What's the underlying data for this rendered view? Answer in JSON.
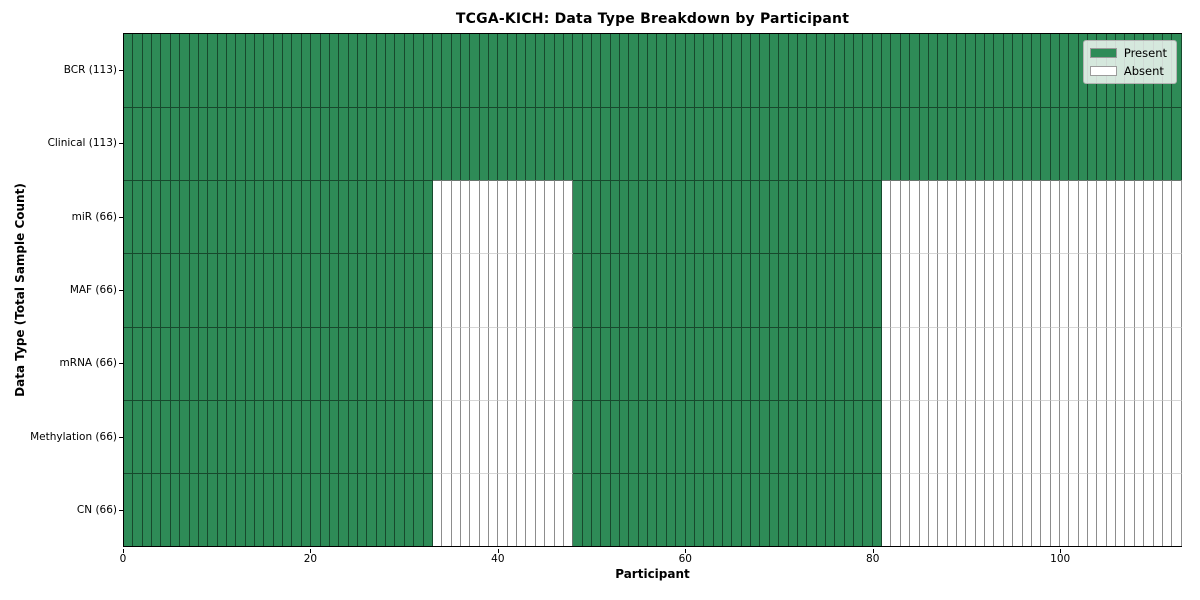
{
  "chart_data": {
    "type": "heatmap",
    "title": "TCGA-KICH: Data Type Breakdown by Participant",
    "xlabel": "Participant",
    "ylabel": "Data Type (Total Sample Count)",
    "n_participants": 113,
    "xlim": [
      0,
      113
    ],
    "x_ticks": [
      0,
      20,
      40,
      60,
      80,
      100
    ],
    "grid": "cell-borders",
    "colors": {
      "present": "#2e8b57",
      "absent": "#ffffff"
    },
    "legend": {
      "position": "upper right",
      "entries": [
        {
          "label": "Present",
          "color": "#2e8b57"
        },
        {
          "label": "Absent",
          "color": "#ffffff"
        }
      ]
    },
    "rows": [
      {
        "key": "bcr",
        "label": "BCR (113)",
        "total_samples": 113,
        "present_ranges": [
          [
            0,
            112
          ]
        ]
      },
      {
        "key": "clinical",
        "label": "Clinical (113)",
        "total_samples": 113,
        "present_ranges": [
          [
            0,
            112
          ]
        ]
      },
      {
        "key": "mir",
        "label": "miR (66)",
        "total_samples": 66,
        "present_ranges": [
          [
            0,
            32
          ],
          [
            48,
            80
          ]
        ]
      },
      {
        "key": "maf",
        "label": "MAF (66)",
        "total_samples": 66,
        "present_ranges": [
          [
            0,
            32
          ],
          [
            48,
            80
          ]
        ]
      },
      {
        "key": "mrna",
        "label": "mRNA (66)",
        "total_samples": 66,
        "present_ranges": [
          [
            0,
            32
          ],
          [
            48,
            80
          ]
        ]
      },
      {
        "key": "methylation",
        "label": "Methylation (66)",
        "total_samples": 66,
        "present_ranges": [
          [
            0,
            32
          ],
          [
            48,
            80
          ]
        ]
      },
      {
        "key": "cn",
        "label": "CN (66)",
        "total_samples": 66,
        "present_ranges": [
          [
            0,
            32
          ],
          [
            48,
            80
          ]
        ]
      }
    ]
  }
}
